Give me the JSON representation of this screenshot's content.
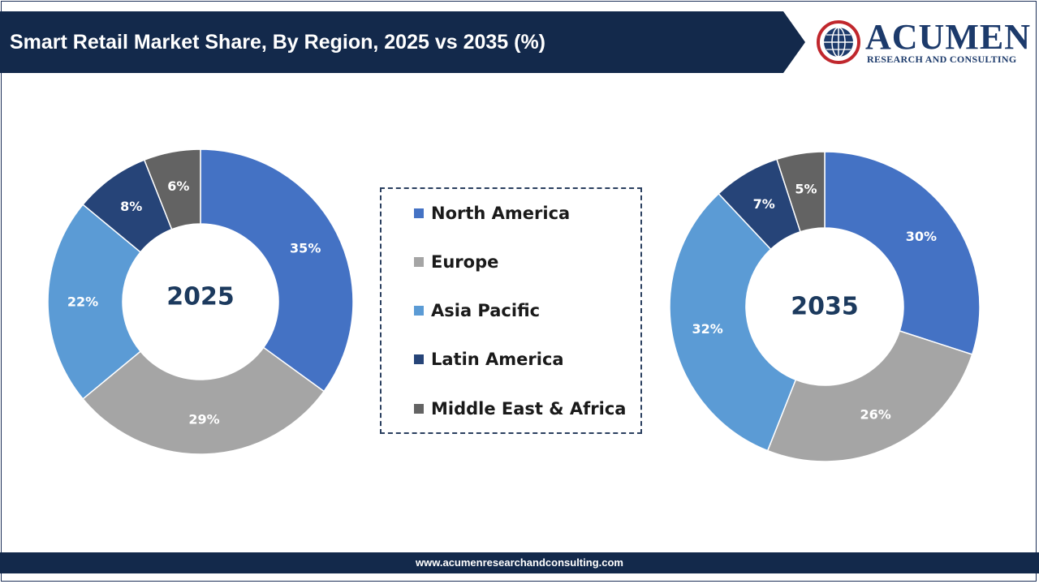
{
  "header": {
    "title": "Smart Retail Market Share, By Region, 2025 vs 2035 (%)"
  },
  "logo": {
    "name": "ACUMEN",
    "subtitle": "RESEARCH AND CONSULTING",
    "globe_icon": "globe-icon"
  },
  "footer": {
    "url": "www.acumenresearchandconsulting.com"
  },
  "colors": {
    "banner": "#13294b",
    "north_america": "#4472c4",
    "europe": "#a5a5a5",
    "asia_pacific": "#5b9bd5",
    "latin_america": "#264478",
    "middle_east_africa": "#636363"
  },
  "legend": {
    "items": [
      {
        "label": "North America",
        "color": "#4472c4"
      },
      {
        "label": "Europe",
        "color": "#a5a5a5"
      },
      {
        "label": "Asia Pacific",
        "color": "#5b9bd5"
      },
      {
        "label": "Latin America",
        "color": "#264478"
      },
      {
        "label": "Middle East & Africa",
        "color": "#636363"
      }
    ]
  },
  "chart_data": [
    {
      "type": "pie",
      "center_label": "2025",
      "categories": [
        "North America",
        "Europe",
        "Asia Pacific",
        "Latin America",
        "Middle East & Africa"
      ],
      "values": [
        35,
        29,
        22,
        8,
        6
      ],
      "value_labels": [
        "35%",
        "29%",
        "22%",
        "8%",
        "6%"
      ],
      "colors": [
        "#4472c4",
        "#a5a5a5",
        "#5b9bd5",
        "#264478",
        "#636363"
      ],
      "label_colors": [
        "#ffffff",
        "#ffffff",
        "#ffffff",
        "#ffffff",
        "#ffffff"
      ],
      "donut": true
    },
    {
      "type": "pie",
      "center_label": "2035",
      "categories": [
        "North America",
        "Europe",
        "Asia Pacific",
        "Latin America",
        "Middle East & Africa"
      ],
      "values": [
        30,
        26,
        32,
        7,
        5
      ],
      "value_labels": [
        "30%",
        "26%",
        "32%",
        "7%",
        "5%"
      ],
      "colors": [
        "#4472c4",
        "#a5a5a5",
        "#5b9bd5",
        "#264478",
        "#636363"
      ],
      "label_colors": [
        "#ffffff",
        "#ffffff",
        "#ffffff",
        "#ffffff",
        "#ffffff"
      ],
      "donut": true
    }
  ]
}
